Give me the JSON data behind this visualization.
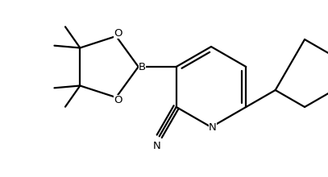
{
  "background_color": "#ffffff",
  "line_color": "#000000",
  "line_width": 1.6,
  "figsize": [
    4.07,
    2.2
  ],
  "dpi": 100,
  "xlim": [
    0,
    407
  ],
  "ylim": [
    0,
    220
  ]
}
